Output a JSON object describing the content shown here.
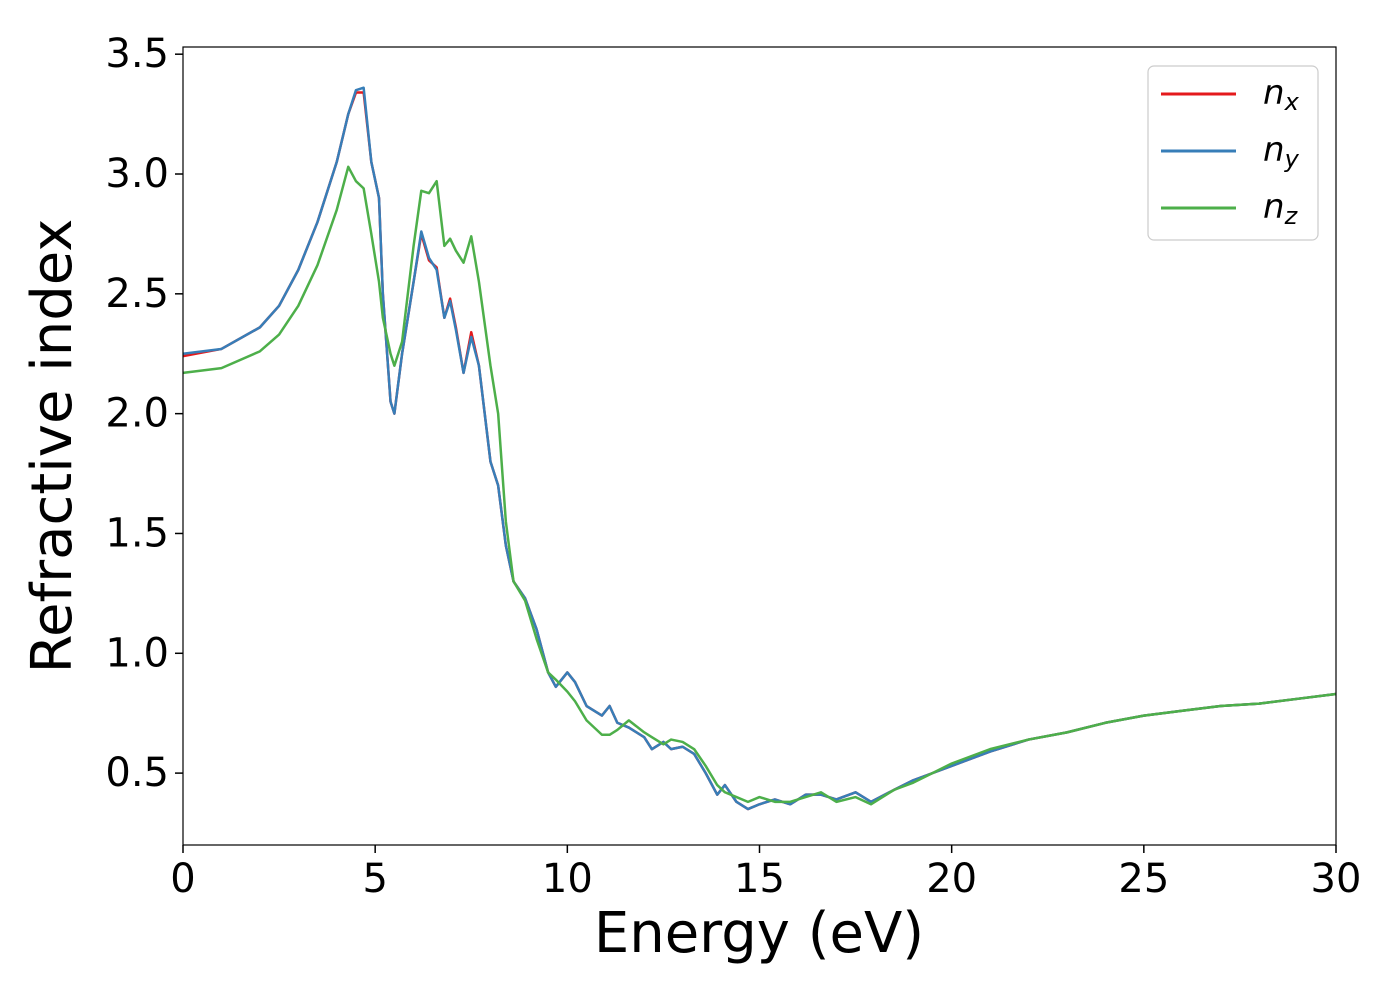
{
  "chart_data": {
    "type": "line",
    "x_label": "Energy (eV)",
    "y_label": "Refractive index",
    "x": [
      0,
      1,
      2,
      2.5,
      3,
      3.5,
      4,
      4.3,
      4.5,
      4.7,
      4.9,
      5.1,
      5.2,
      5.4,
      5.5,
      5.7,
      6.0,
      6.2,
      6.4,
      6.6,
      6.8,
      6.95,
      7.1,
      7.3,
      7.5,
      7.7,
      8.0,
      8.2,
      8.4,
      8.6,
      8.9,
      9.2,
      9.5,
      9.7,
      10.0,
      10.2,
      10.5,
      10.9,
      11.1,
      11.3,
      11.6,
      12.0,
      12.2,
      12.5,
      12.7,
      13.0,
      13.3,
      13.6,
      13.9,
      14.1,
      14.4,
      14.7,
      15.0,
      15.4,
      15.8,
      16.2,
      16.6,
      17.0,
      17.5,
      17.9,
      18.5,
      19.0,
      19.5,
      20,
      21,
      22,
      23,
      24,
      25,
      26,
      27,
      28,
      29,
      30
    ],
    "series": [
      {
        "name": "nx",
        "color": "#e41a1c",
        "values": [
          2.24,
          2.27,
          2.36,
          2.45,
          2.6,
          2.8,
          3.05,
          3.25,
          3.34,
          3.34,
          3.05,
          2.9,
          2.5,
          2.05,
          2.0,
          2.25,
          2.55,
          2.75,
          2.64,
          2.61,
          2.4,
          2.48,
          2.36,
          2.17,
          2.34,
          2.2,
          1.8,
          1.7,
          1.45,
          1.3,
          1.23,
          1.1,
          0.92,
          0.86,
          0.92,
          0.88,
          0.78,
          0.74,
          0.78,
          0.71,
          0.69,
          0.65,
          0.6,
          0.63,
          0.6,
          0.61,
          0.58,
          0.5,
          0.41,
          0.45,
          0.38,
          0.35,
          0.37,
          0.39,
          0.37,
          0.41,
          0.41,
          0.39,
          0.42,
          0.38,
          0.43,
          0.47,
          0.5,
          0.53,
          0.59,
          0.64,
          0.67,
          0.71,
          0.74,
          0.76,
          0.78,
          0.79,
          0.81,
          0.83
        ]
      },
      {
        "name": "ny",
        "color": "#377eb8",
        "values": [
          2.25,
          2.27,
          2.36,
          2.45,
          2.6,
          2.8,
          3.05,
          3.25,
          3.35,
          3.36,
          3.05,
          2.9,
          2.5,
          2.05,
          2.0,
          2.25,
          2.55,
          2.76,
          2.65,
          2.6,
          2.4,
          2.47,
          2.35,
          2.17,
          2.32,
          2.2,
          1.8,
          1.7,
          1.45,
          1.3,
          1.23,
          1.1,
          0.92,
          0.86,
          0.92,
          0.88,
          0.78,
          0.74,
          0.78,
          0.71,
          0.69,
          0.65,
          0.6,
          0.63,
          0.6,
          0.61,
          0.58,
          0.5,
          0.41,
          0.45,
          0.38,
          0.35,
          0.37,
          0.39,
          0.37,
          0.41,
          0.41,
          0.39,
          0.42,
          0.38,
          0.43,
          0.47,
          0.5,
          0.53,
          0.59,
          0.64,
          0.67,
          0.71,
          0.74,
          0.76,
          0.78,
          0.79,
          0.81,
          0.83
        ]
      },
      {
        "name": "nz",
        "color": "#4daf4a",
        "values": [
          2.17,
          2.19,
          2.26,
          2.33,
          2.45,
          2.62,
          2.85,
          3.03,
          2.97,
          2.94,
          2.75,
          2.55,
          2.4,
          2.25,
          2.2,
          2.3,
          2.7,
          2.93,
          2.92,
          2.97,
          2.7,
          2.73,
          2.68,
          2.63,
          2.74,
          2.55,
          2.2,
          2.0,
          1.55,
          1.3,
          1.22,
          1.06,
          0.92,
          0.89,
          0.84,
          0.8,
          0.72,
          0.66,
          0.66,
          0.68,
          0.72,
          0.67,
          0.65,
          0.62,
          0.64,
          0.63,
          0.6,
          0.53,
          0.45,
          0.42,
          0.4,
          0.38,
          0.4,
          0.38,
          0.38,
          0.4,
          0.42,
          0.38,
          0.4,
          0.37,
          0.43,
          0.46,
          0.5,
          0.54,
          0.6,
          0.64,
          0.67,
          0.71,
          0.74,
          0.76,
          0.78,
          0.79,
          0.81,
          0.83
        ]
      }
    ],
    "xlim": [
      0,
      30
    ],
    "xticks": [
      0,
      5,
      10,
      15,
      20,
      25,
      30
    ],
    "ylim": [
      0.2,
      3.53
    ],
    "yticks": [
      0.5,
      {
        "value": 1.0,
        "label": "1.0"
      },
      1.5,
      {
        "value": 2.0,
        "label": "2.0"
      },
      2.5,
      {
        "value": 3.0,
        "label": "3.0"
      },
      3.5
    ],
    "grid": false,
    "legend": "upper right"
  }
}
